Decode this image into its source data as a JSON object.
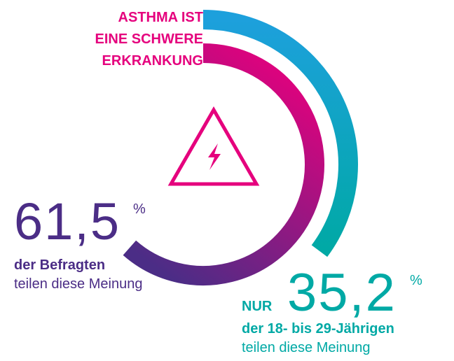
{
  "chart_data": {
    "type": "radial",
    "title": [
      "ASTHMA IST",
      "EINE SCHWERE",
      "ERKRANKUNG"
    ],
    "title_color": "#e5007d",
    "ylim": [
      0,
      100
    ],
    "series": [
      {
        "name": "der Befragten",
        "note": "teilen diese Meinung",
        "values": [
          61.5
        ],
        "value_labels": [
          "61,5"
        ],
        "unit": "%",
        "color": [
          "#e5007d",
          "#4b2d86"
        ]
      },
      {
        "prefix": "NUR",
        "name": "der 18- bis 29-Jährigen",
        "note": "teilen diese Meinung",
        "values": [
          35.2
        ],
        "value_labels": [
          "35,2"
        ],
        "unit": "%",
        "color": [
          "#1da0dc",
          "#00a9a5"
        ]
      }
    ]
  }
}
